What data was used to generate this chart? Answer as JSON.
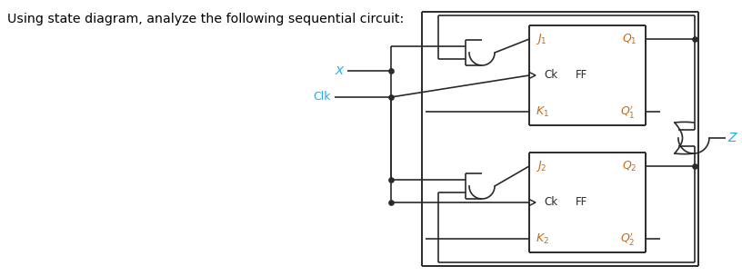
{
  "title_text": "Using state diagram, analyze the following sequential circuit:",
  "bg_color": "#ffffff",
  "dark_color": "#2a2a2a",
  "cyan_color": "#29ABE2",
  "orange_color": "#C8680A",
  "figsize": [
    8.16,
    3.04
  ],
  "dpi": 100,
  "X_label": "X",
  "Clk_label": "Clk",
  "Z_label": "Z"
}
